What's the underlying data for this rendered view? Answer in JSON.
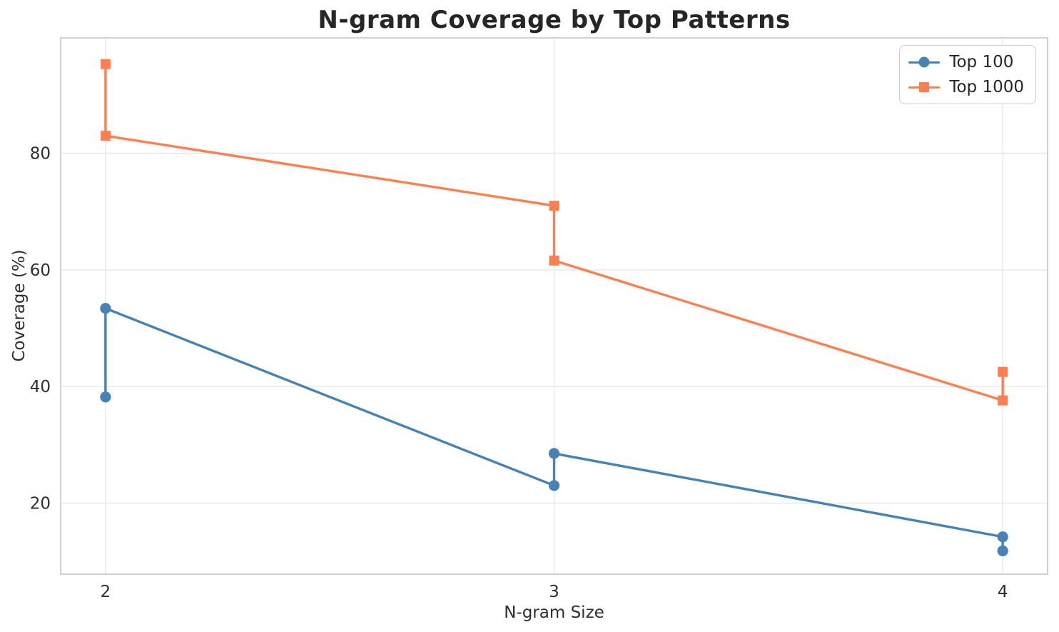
{
  "colors": {
    "background": "#ffffff",
    "grid": "#e8e8e8",
    "spine": "#d0d0d0",
    "tick_text": "#2e2e2e",
    "title_text": "#262626",
    "blue": "#4682B4",
    "orange": "#FF7F50"
  },
  "chart_data": {
    "type": "line",
    "title": "N-gram Coverage by Top Patterns",
    "xlabel": "N-gram Size",
    "ylabel": "Coverage (%)",
    "x_ticks": [
      2,
      3,
      4
    ],
    "y_ticks": [
      20,
      40,
      60,
      80
    ],
    "xlim": [
      1.9,
      4.1
    ],
    "ylim": [
      7.8,
      99.8
    ],
    "grid": true,
    "legend_position": "upper right",
    "series": [
      {
        "name": "Top 100",
        "color": "#4682B4",
        "marker": "circle",
        "points": [
          [
            2,
            38.2
          ],
          [
            2,
            53.4
          ],
          [
            3,
            23.0
          ],
          [
            3,
            28.5
          ],
          [
            4,
            14.2
          ],
          [
            4,
            11.8
          ]
        ]
      },
      {
        "name": "Top 1000",
        "color": "#FF7F50",
        "marker": "square",
        "points": [
          [
            2,
            95.3
          ],
          [
            2,
            83.0
          ],
          [
            3,
            71.0
          ],
          [
            3,
            61.6
          ],
          [
            4,
            37.6
          ],
          [
            4,
            42.5
          ]
        ]
      }
    ]
  }
}
